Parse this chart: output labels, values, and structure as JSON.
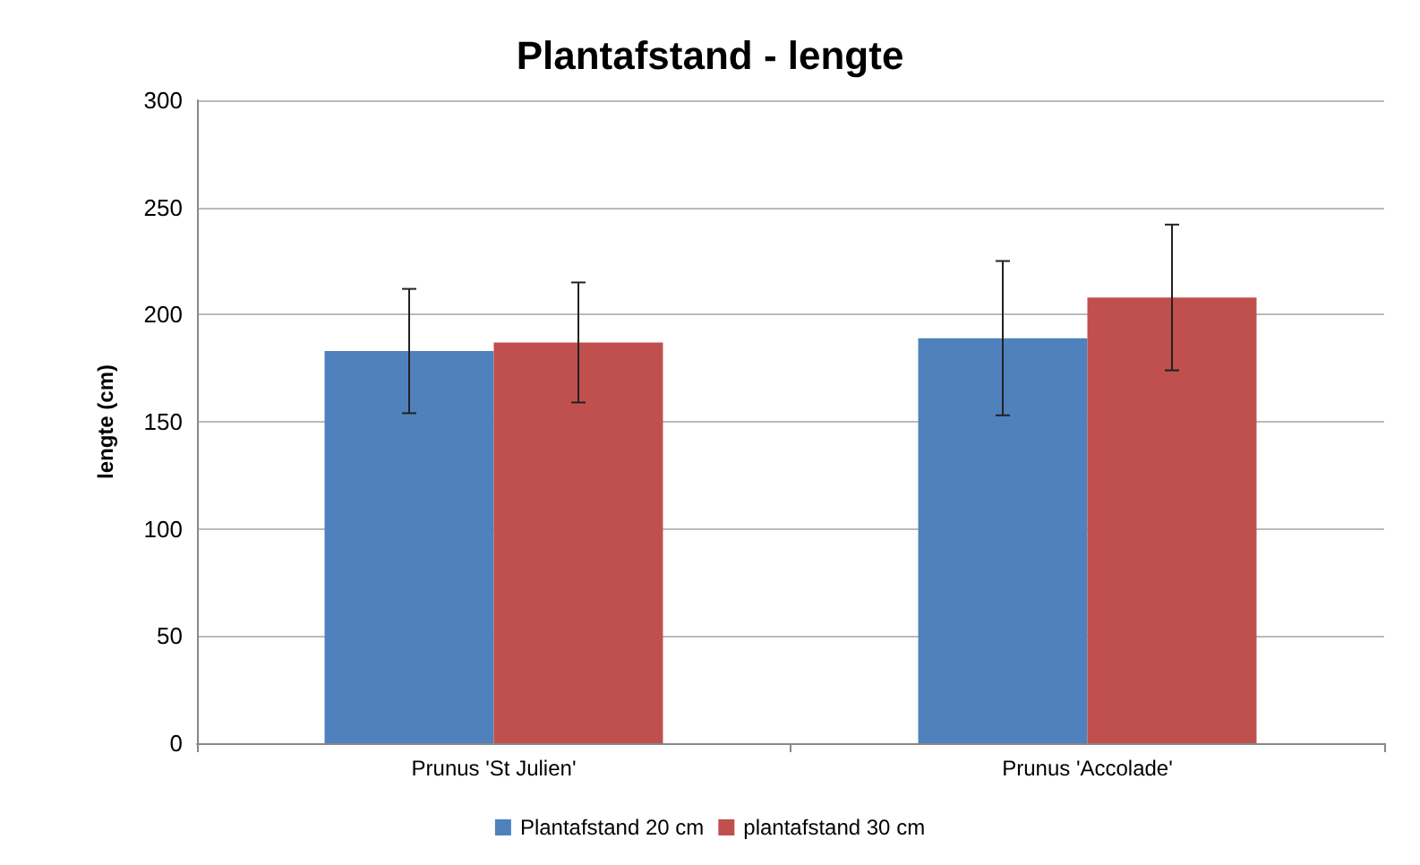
{
  "chart_data": {
    "type": "bar",
    "title": "Plantafstand - lengte",
    "ylabel": "lengte (cm)",
    "categories": [
      "Prunus 'St Julien'",
      "Prunus 'Accolade'"
    ],
    "series": [
      {
        "name": "Plantafstand 20 cm",
        "color": "#4f81bd",
        "values": [
          183,
          189
        ],
        "errors": [
          [
            154,
            212
          ],
          [
            153,
            225
          ]
        ]
      },
      {
        "name": "plantafstand 30 cm",
        "color": "#c0504d",
        "values": [
          187,
          208
        ],
        "errors": [
          [
            159,
            215
          ],
          [
            174,
            242
          ]
        ]
      }
    ],
    "ylim": [
      0,
      300
    ],
    "yticks": [
      0,
      50,
      100,
      150,
      200,
      250,
      300
    ],
    "grid": "y",
    "legend": "bottom"
  }
}
